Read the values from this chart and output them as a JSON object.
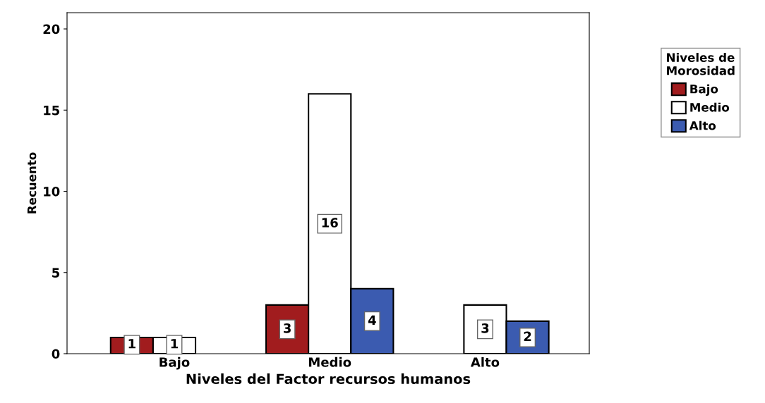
{
  "chart_data": {
    "type": "bar",
    "xlabel": "Niveles del Factor recursos humanos",
    "ylabel": "Recuento",
    "legend_title": "Niveles de\nMorosidad",
    "categories": [
      "Bajo",
      "Medio",
      "Alto"
    ],
    "series": [
      {
        "name": "Bajo",
        "color": "#a11c1e",
        "values": [
          1,
          3,
          null
        ],
        "value_labels": [
          "1",
          "3",
          null
        ]
      },
      {
        "name": "Medio",
        "color": "#ffffff",
        "values": [
          1,
          16,
          3
        ],
        "value_labels": [
          "1",
          "16",
          "3"
        ]
      },
      {
        "name": "Alto",
        "color": "#3b5bb0",
        "values": [
          null,
          4,
          2
        ],
        "value_labels": [
          null,
          "4",
          "2"
        ]
      }
    ],
    "ylim": [
      0,
      21
    ],
    "yticks": [
      0,
      5,
      10,
      15,
      20
    ],
    "grid": false,
    "legend": "right"
  }
}
